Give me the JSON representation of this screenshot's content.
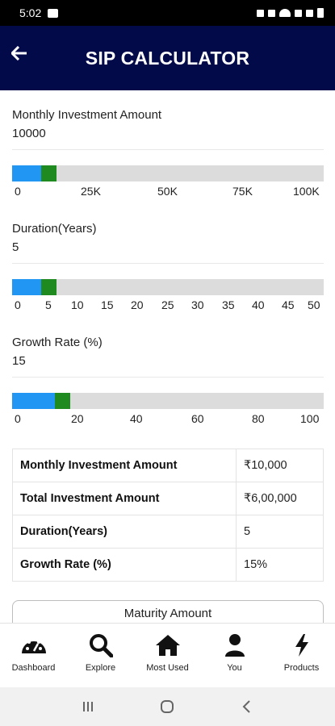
{
  "status_bar": {
    "time": "5:02"
  },
  "app_bar": {
    "title": "SIP CALCULATOR"
  },
  "inputs": [
    {
      "label": "Monthly Investment Amount",
      "value": "10000",
      "slider_fraction": 0.1,
      "ticks": [
        "0",
        "25K",
        "50K",
        "75K",
        "100K"
      ]
    },
    {
      "label": "Duration(Years)",
      "value": "5",
      "slider_fraction": 0.1,
      "ticks": [
        "0",
        "5",
        "10",
        "15",
        "20",
        "25",
        "30",
        "35",
        "40",
        "45",
        "50"
      ]
    },
    {
      "label": "Growth Rate (%)",
      "value": "15",
      "slider_fraction": 0.15,
      "ticks": [
        "0",
        "20",
        "40",
        "60",
        "80",
        "100"
      ]
    }
  ],
  "summary": [
    {
      "label": "Monthly Investment Amount",
      "value": "₹10,000"
    },
    {
      "label": "Total Investment Amount",
      "value": "₹6,00,000"
    },
    {
      "label": "Duration(Years)",
      "value": "5"
    },
    {
      "label": "Growth Rate (%)",
      "value": "15%"
    }
  ],
  "maturity_button": "Maturity Amount",
  "bottom_nav": [
    {
      "label": "Dashboard",
      "icon": "dashboard-icon"
    },
    {
      "label": "Explore",
      "icon": "search-icon"
    },
    {
      "label": "Most Used",
      "icon": "home-icon"
    },
    {
      "label": "You",
      "icon": "user-icon"
    },
    {
      "label": "Products",
      "icon": "bolt-icon"
    }
  ],
  "colors": {
    "app_bar": "#030a4a",
    "slider_fill": "#2196f3",
    "slider_thumb": "#1f8a1f",
    "track": "#dcdcdc"
  }
}
